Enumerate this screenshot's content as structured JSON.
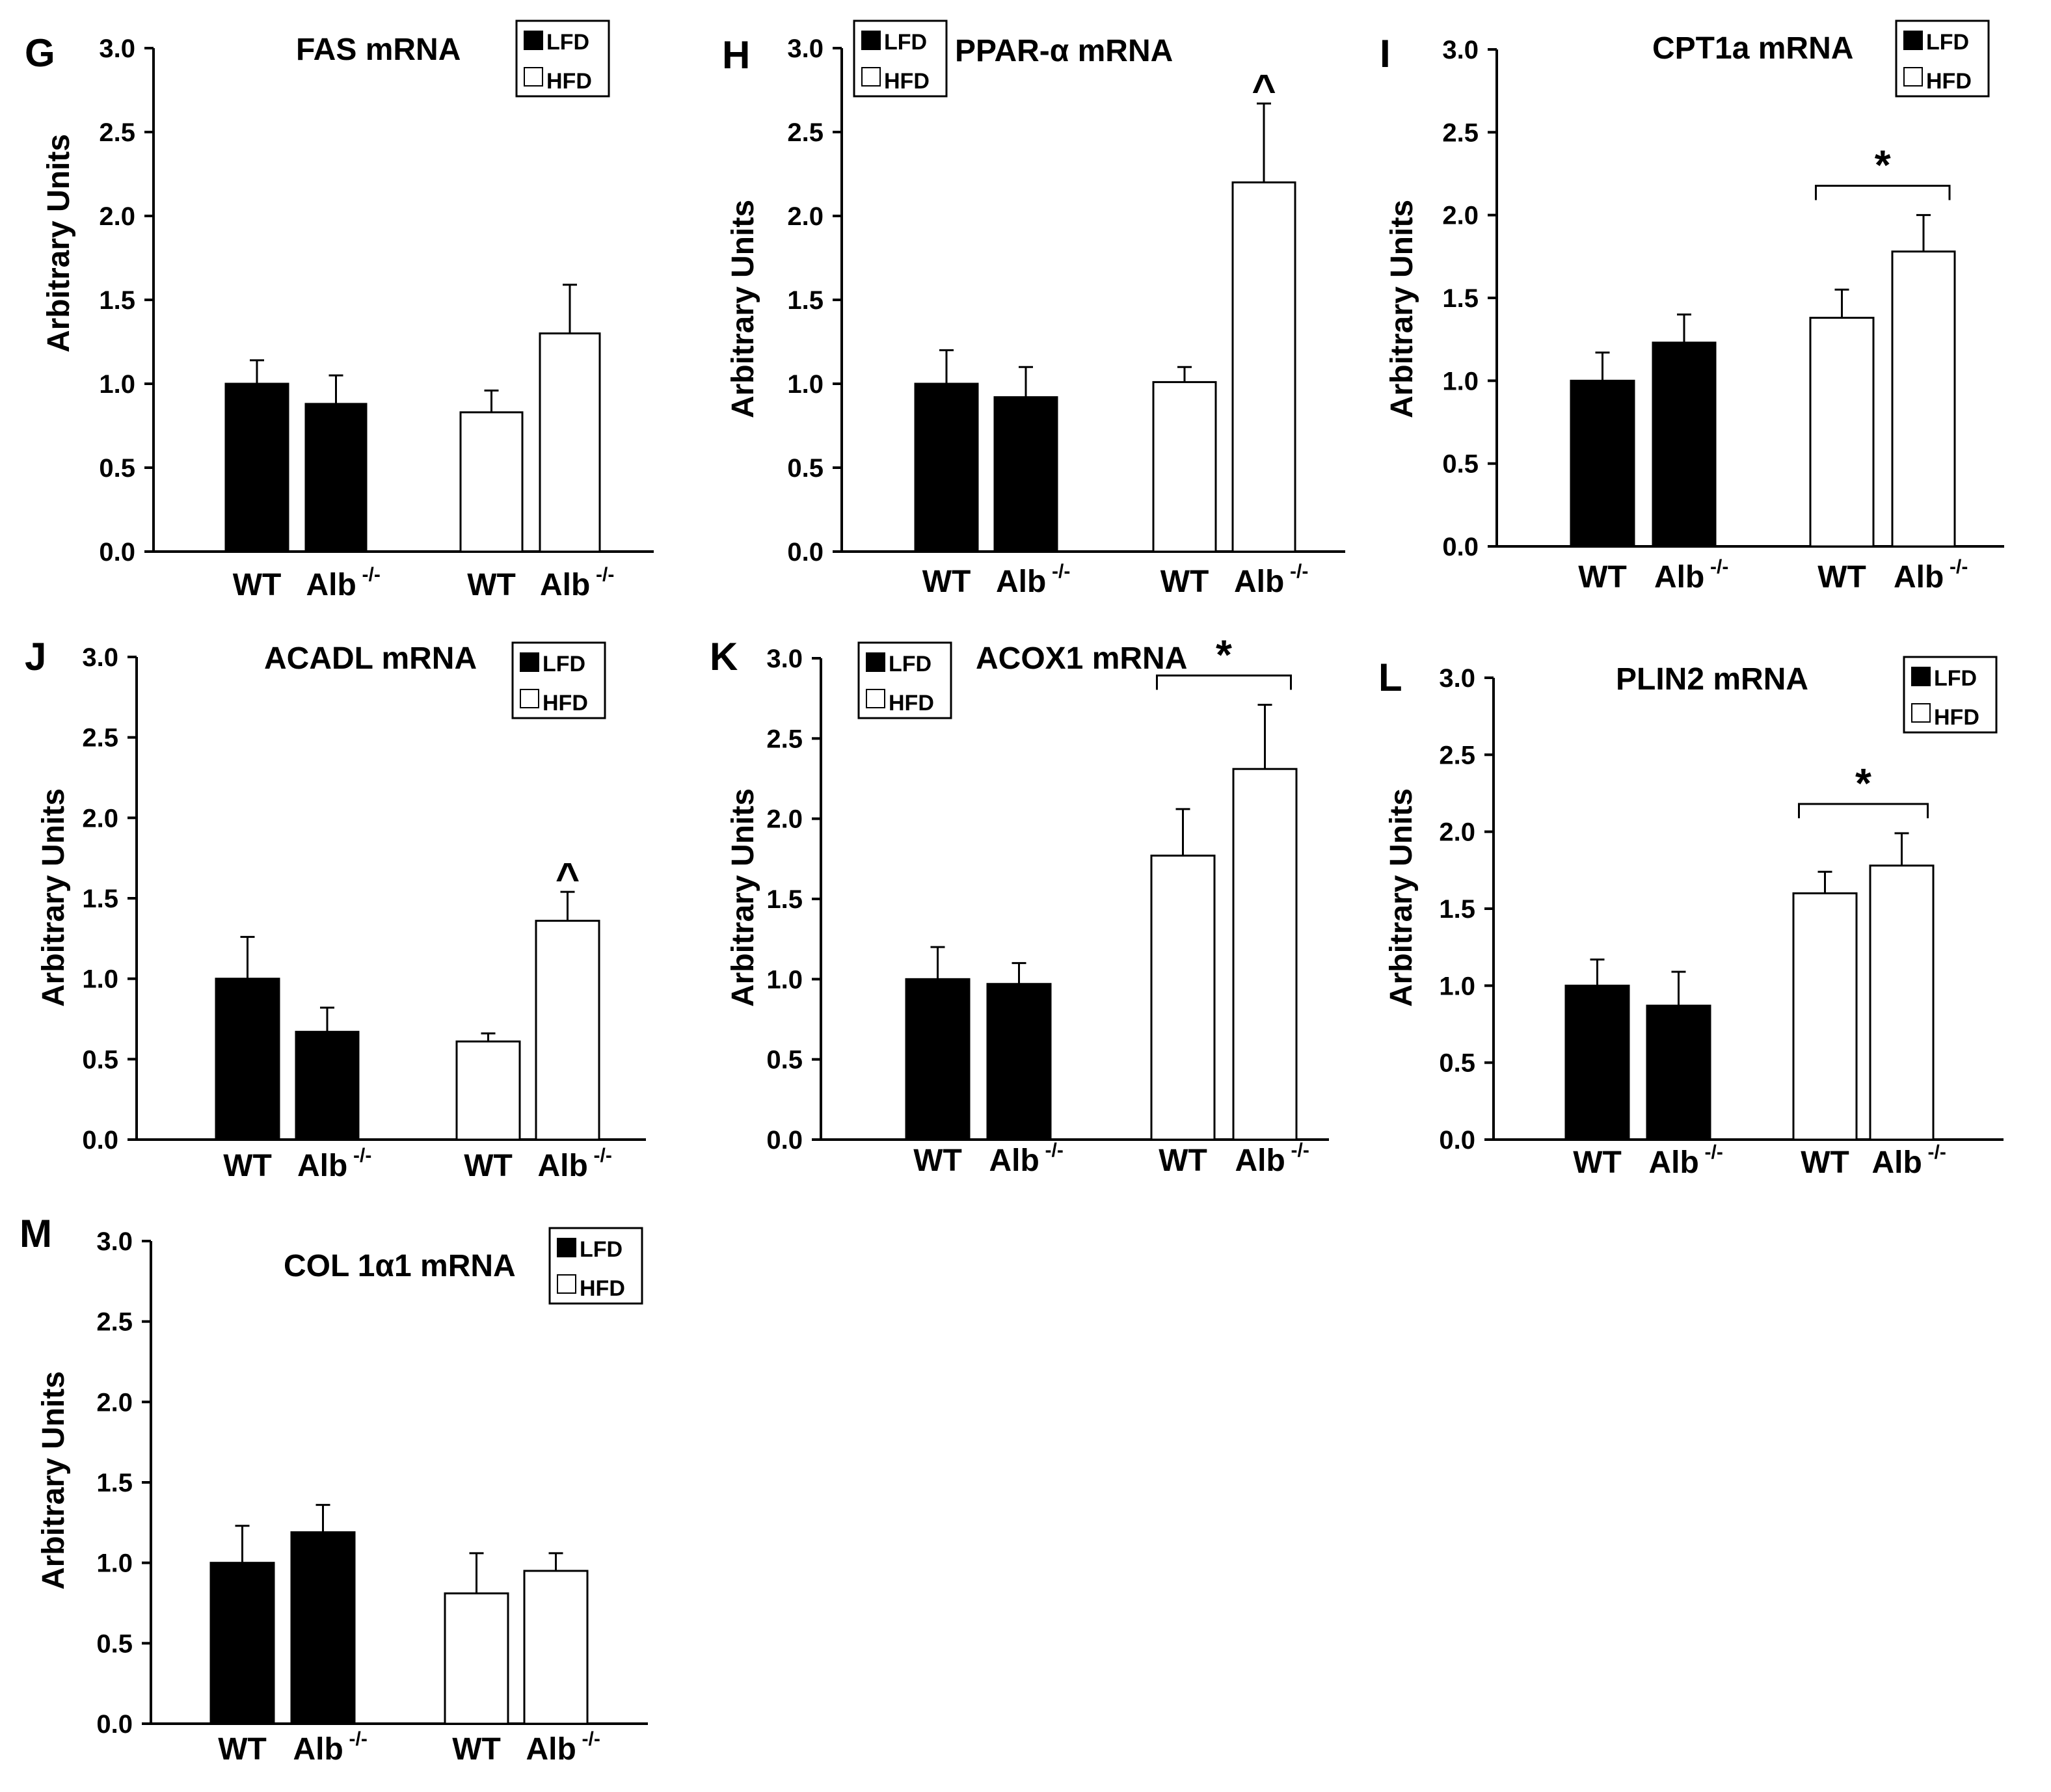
{
  "figure": {
    "legend": {
      "lfd_label": "LFD",
      "hfd_label": "HFD",
      "lfd_color": "#000000",
      "hfd_color": "#ffffff"
    },
    "categories": [
      "WT",
      "Alb"
    ],
    "knockout_superscript": "-/-"
  },
  "chart_data": [
    {
      "panel": "G",
      "type": "bar",
      "title": "FAS mRNA",
      "ylabel": "Arbitrary Units",
      "xlabel": "",
      "ylim": [
        0,
        3.0
      ],
      "yticks": [
        "0.0",
        "0.5",
        "1.0",
        "1.5",
        "2.0",
        "2.5",
        "3.0"
      ],
      "categories": [
        "WT",
        "Alb -/-"
      ],
      "series": [
        {
          "name": "LFD",
          "values": [
            1.0,
            0.88
          ],
          "errors": [
            0.14,
            0.17
          ]
        },
        {
          "name": "HFD",
          "values": [
            0.83,
            1.3
          ],
          "errors": [
            0.13,
            0.29
          ]
        }
      ],
      "annotations": []
    },
    {
      "panel": "H",
      "type": "bar",
      "title": "PPAR-α mRNA",
      "ylabel": "Arbitrary Units",
      "xlabel": "",
      "ylim": [
        0,
        3.0
      ],
      "yticks": [
        "0.0",
        "0.5",
        "1.0",
        "1.5",
        "2.0",
        "2.5",
        "3.0"
      ],
      "categories": [
        "WT",
        "Alb -/-"
      ],
      "series": [
        {
          "name": "LFD",
          "values": [
            1.0,
            0.92
          ],
          "errors": [
            0.2,
            0.18
          ]
        },
        {
          "name": "HFD",
          "values": [
            1.01,
            2.2
          ],
          "errors": [
            0.09,
            0.47
          ]
        }
      ],
      "annotations": [
        {
          "text": "^",
          "target": "HFD Alb -/-"
        }
      ]
    },
    {
      "panel": "I",
      "type": "bar",
      "title": "CPT1a mRNA",
      "ylabel": "Arbitrary Units",
      "xlabel": "",
      "ylim": [
        0,
        3.0
      ],
      "yticks": [
        "0.0",
        "0.5",
        "1.0",
        "1.5",
        "2.0",
        "2.5",
        "3.0"
      ],
      "categories": [
        "WT",
        "Alb -/-"
      ],
      "series": [
        {
          "name": "LFD",
          "values": [
            1.0,
            1.23
          ],
          "errors": [
            0.17,
            0.17
          ]
        },
        {
          "name": "HFD",
          "values": [
            1.38,
            1.78
          ],
          "errors": [
            0.17,
            0.22
          ]
        }
      ],
      "annotations": [
        {
          "text": "*",
          "target": "HFD bracket"
        }
      ]
    },
    {
      "panel": "J",
      "type": "bar",
      "title": "ACADL mRNA",
      "ylabel": "Arbitrary Units",
      "xlabel": "",
      "ylim": [
        0,
        3.0
      ],
      "yticks": [
        "0.0",
        "0.5",
        "1.0",
        "1.5",
        "2.0",
        "2.5",
        "3.0"
      ],
      "categories": [
        "WT",
        "Alb -/-"
      ],
      "series": [
        {
          "name": "LFD",
          "values": [
            1.0,
            0.67
          ],
          "errors": [
            0.26,
            0.15
          ]
        },
        {
          "name": "HFD",
          "values": [
            0.61,
            1.36
          ],
          "errors": [
            0.05,
            0.18
          ]
        }
      ],
      "annotations": [
        {
          "text": "^",
          "target": "HFD Alb -/-"
        }
      ]
    },
    {
      "panel": "K",
      "type": "bar",
      "title": "ACOX1 mRNA",
      "ylabel": "Arbitrary Units",
      "xlabel": "",
      "ylim": [
        0,
        3.0
      ],
      "yticks": [
        "0.0",
        "0.5",
        "1.0",
        "1.5",
        "2.0",
        "2.5",
        "3.0"
      ],
      "categories": [
        "WT",
        "Alb -/-"
      ],
      "series": [
        {
          "name": "LFD",
          "values": [
            1.0,
            0.97
          ],
          "errors": [
            0.2,
            0.13
          ]
        },
        {
          "name": "HFD",
          "values": [
            1.77,
            2.31
          ],
          "errors": [
            0.29,
            0.4
          ]
        }
      ],
      "annotations": [
        {
          "text": "*",
          "target": "HFD bracket"
        }
      ]
    },
    {
      "panel": "L",
      "type": "bar",
      "title": "PLIN2 mRNA",
      "ylabel": "Arbitrary Units",
      "xlabel": "",
      "ylim": [
        0,
        3.0
      ],
      "yticks": [
        "0.0",
        "0.5",
        "1.0",
        "1.5",
        "2.0",
        "2.5",
        "3.0"
      ],
      "categories": [
        "WT",
        "Alb -/-"
      ],
      "series": [
        {
          "name": "LFD",
          "values": [
            1.0,
            0.87
          ],
          "errors": [
            0.17,
            0.22
          ]
        },
        {
          "name": "HFD",
          "values": [
            1.6,
            1.78
          ],
          "errors": [
            0.14,
            0.21
          ]
        }
      ],
      "annotations": [
        {
          "text": "*",
          "target": "HFD bracket"
        }
      ]
    },
    {
      "panel": "M",
      "type": "bar",
      "title": "COL 1α1 mRNA",
      "ylabel": "Arbitrary Units",
      "xlabel": "",
      "ylim": [
        0,
        3.0
      ],
      "yticks": [
        "0.0",
        "0.5",
        "1.0",
        "1.5",
        "2.0",
        "2.5",
        "3.0"
      ],
      "categories": [
        "WT",
        "Alb -/-"
      ],
      "series": [
        {
          "name": "LFD",
          "values": [
            1.0,
            1.19
          ],
          "errors": [
            0.23,
            0.17
          ]
        },
        {
          "name": "HFD",
          "values": [
            0.81,
            0.95
          ],
          "errors": [
            0.25,
            0.11
          ]
        }
      ],
      "annotations": []
    }
  ]
}
